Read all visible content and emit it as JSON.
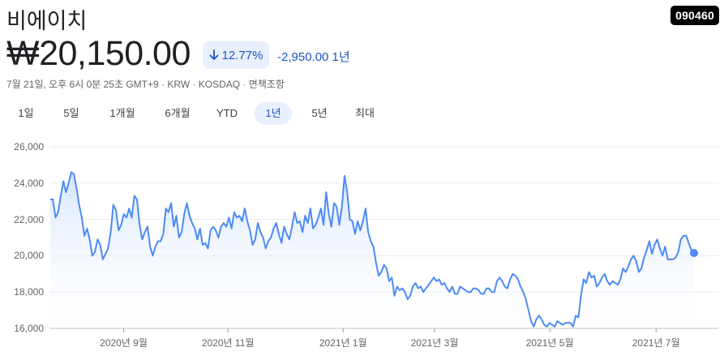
{
  "company_name": "비에이치",
  "ticker": "090460",
  "price": "₩20,150.00",
  "change_percent": "12.77%",
  "change_arrow_icon": "arrow-down-icon",
  "change_absolute": "-2,950.00 1년",
  "meta_line": "7월 21일, 오후 6시 0분 25초 GMT+9 · KRW · KOSDAQ · 면책조항",
  "colors": {
    "accent": "#1a56c4",
    "line": "#4c8bf5",
    "fill_top": "#d2e3fc",
    "badge_bg": "#e8f0fe"
  },
  "tabs": [
    {
      "label": "1일"
    },
    {
      "label": "5일"
    },
    {
      "label": "1개월"
    },
    {
      "label": "6개월"
    },
    {
      "label": "YTD"
    },
    {
      "label": "1년",
      "active": true
    },
    {
      "label": "5년"
    },
    {
      "label": "최대"
    }
  ],
  "chart_data": {
    "type": "area",
    "ylim": [
      16000,
      26000
    ],
    "yticks": [
      "26,000",
      "24,000",
      "22,000",
      "20,000",
      "18,000",
      "16,000"
    ],
    "ytick_values": [
      26000,
      24000,
      22000,
      20000,
      18000,
      16000
    ],
    "xticks": [
      "2020년 9월",
      "2020년 11월",
      "2021년 1월",
      "2021년 3월",
      "2021년 5월",
      "2021년 7월"
    ],
    "xtick_positions": [
      0.114,
      0.276,
      0.455,
      0.597,
      0.776,
      0.941
    ],
    "grid": true,
    "values": [
      23100,
      23100,
      22100,
      22400,
      23300,
      24100,
      23500,
      24000,
      24600,
      24500,
      23700,
      22800,
      22100,
      21100,
      21500,
      20900,
      20000,
      20200,
      20900,
      20600,
      19800,
      20100,
      20400,
      21300,
      22800,
      22500,
      21400,
      21700,
      22300,
      22100,
      22600,
      22100,
      23300,
      23100,
      21700,
      20900,
      21300,
      21600,
      20500,
      20000,
      20500,
      20800,
      20800,
      21200,
      22600,
      22400,
      22900,
      21600,
      22200,
      21000,
      21300,
      22300,
      22900,
      22200,
      21800,
      21500,
      20900,
      21500,
      20600,
      20700,
      20400,
      21400,
      21600,
      21400,
      21000,
      21600,
      21800,
      21600,
      22100,
      21500,
      22400,
      22100,
      22200,
      21900,
      22600,
      21900,
      21400,
      20600,
      20900,
      21800,
      21300,
      21000,
      20400,
      20800,
      21000,
      21500,
      21800,
      21200,
      20700,
      21600,
      21200,
      20900,
      21600,
      22400,
      21800,
      21900,
      21300,
      22200,
      21800,
      22600,
      21500,
      21700,
      22100,
      22600,
      21700,
      23500,
      22300,
      21600,
      22900,
      22700,
      21700,
      22700,
      24400,
      23500,
      22000,
      21900,
      21200,
      21900,
      21400,
      21900,
      22600,
      21300,
      20800,
      20500,
      19600,
      18900,
      19100,
      19500,
      19300,
      18600,
      18800,
      17800,
      18300,
      18100,
      18200,
      18000,
      17600,
      17800,
      18300,
      18500,
      18200,
      18300,
      18000,
      18200,
      18400,
      18600,
      18800,
      18600,
      18700,
      18400,
      18500,
      18200,
      18000,
      18300,
      17900,
      17900,
      18300,
      18200,
      18100,
      18000,
      18000,
      18200,
      18200,
      18100,
      17900,
      17900,
      18200,
      18200,
      18000,
      18000,
      18600,
      18800,
      18600,
      18300,
      18200,
      18700,
      19000,
      18900,
      18700,
      18300,
      18000,
      17600,
      17000,
      16400,
      16100,
      16500,
      16700,
      16500,
      16200,
      16100,
      16300,
      16200,
      16100,
      16400,
      16300,
      16200,
      16300,
      16300,
      16300,
      16100,
      16700,
      16600,
      17800,
      18700,
      18500,
      19100,
      18800,
      18900,
      18300,
      18500,
      18800,
      19000,
      18600,
      18400,
      18600,
      18500,
      18400,
      18700,
      19300,
      19100,
      19400,
      19800,
      20000,
      19700,
      19100,
      19300,
      19900,
      20300,
      20800,
      20100,
      20600,
      20900,
      20400,
      20000,
      20500,
      19800,
      19800,
      19800,
      19900,
      20200,
      20900,
      21100,
      21100,
      20700,
      20300,
      20150
    ]
  }
}
